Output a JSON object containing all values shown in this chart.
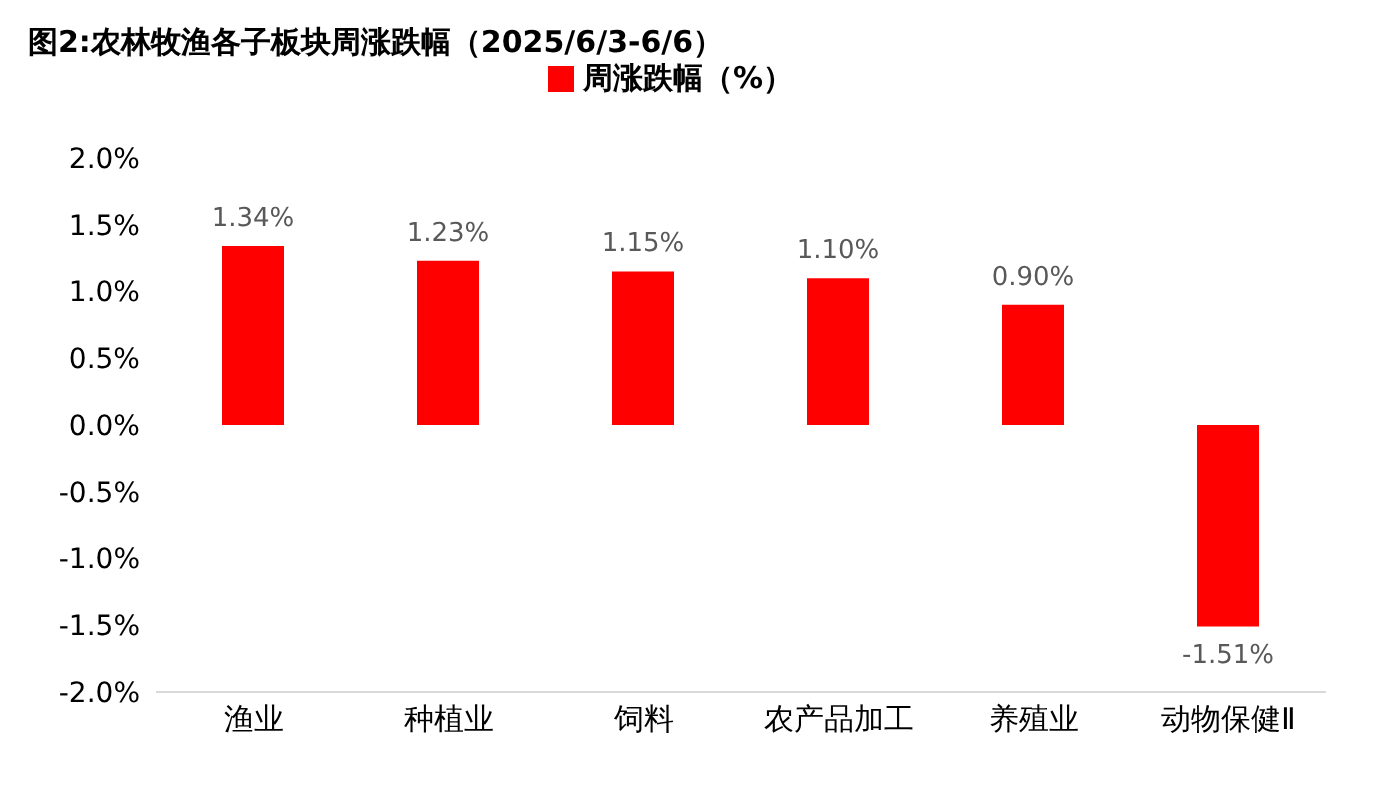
{
  "chart_data": {
    "type": "bar",
    "title": "图2:农林牧渔各子板块周涨跌幅（2025/6/3-6/6）",
    "categories": [
      "渔业",
      "种植业",
      "饲料",
      "农产品加工",
      "养殖业",
      "动物保健Ⅱ"
    ],
    "series": [
      {
        "name": "周涨跌幅（%）",
        "color": "#ff0000",
        "values": [
          1.34,
          1.23,
          1.15,
          1.1,
          0.9,
          -1.51
        ],
        "value_labels": [
          "1.34%",
          "1.23%",
          "1.15%",
          "1.10%",
          "0.90%",
          "-1.51%"
        ]
      }
    ],
    "ylim": [
      -2,
      2
    ],
    "yticks": [
      {
        "value": -2,
        "label": "-2.0%"
      },
      {
        "value": -1.5,
        "label": "-1.5%"
      },
      {
        "value": -1,
        "label": "-1.0%"
      },
      {
        "value": -0.5,
        "label": "-0.5%"
      },
      {
        "value": 0,
        "label": "0.0%"
      },
      {
        "value": 0.5,
        "label": "0.5%"
      },
      {
        "value": 1,
        "label": "1.0%"
      },
      {
        "value": 1.5,
        "label": "1.5%"
      },
      {
        "value": 2,
        "label": "2.0%"
      }
    ],
    "grid": false,
    "legend": "top"
  }
}
